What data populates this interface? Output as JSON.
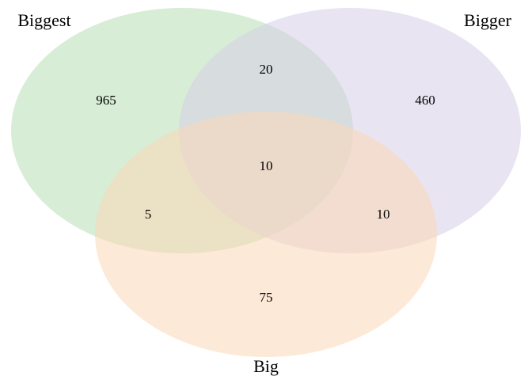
{
  "diagram": {
    "type": "venn3",
    "sets": [
      {
        "key": "A",
        "label": "Biggest",
        "color": "#b6dfb5"
      },
      {
        "key": "B",
        "label": "Bigger",
        "color": "#d7cde7"
      },
      {
        "key": "C",
        "label": "Big",
        "color": "#fcd7b6"
      }
    ],
    "regions": {
      "A_only": "965",
      "B_only": "460",
      "C_only": "75",
      "AB_only": "20",
      "AC_only": "5",
      "BC_only": "10",
      "ABC": "10"
    }
  }
}
